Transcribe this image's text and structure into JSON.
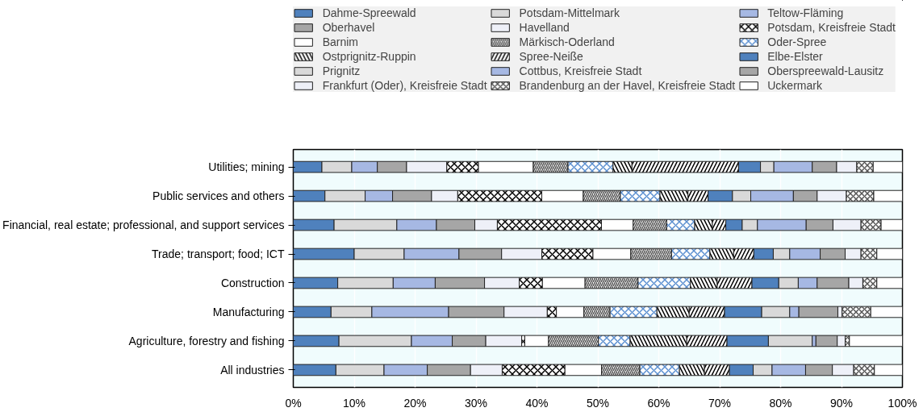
{
  "chart_data": {
    "type": "bar",
    "orientation": "horizontal",
    "stacked": true,
    "categories": [
      "Utilities; mining",
      "Public services and others",
      "Financial, real estate; professional, and support services",
      "Trade; transport; food; ICT",
      "Construction",
      "Manufacturing",
      "Agriculture, forestry and fishing",
      "All industries"
    ],
    "series": [
      {
        "name": "Dahme-Spreewald",
        "color": "#4f81bd",
        "values": [
          4.7,
          5.2,
          6.7,
          10.0,
          7.3,
          6.2,
          7.5,
          7.0
        ]
      },
      {
        "name": "Potsdam-Mittelmark",
        "color": "#d9d9d9",
        "values": [
          4.9,
          6.6,
          10.3,
          8.2,
          9.1,
          6.7,
          11.9,
          7.9
        ]
      },
      {
        "name": "Teltow-Fläming",
        "color": "#a6b8e3",
        "values": [
          4.2,
          4.5,
          6.5,
          9.0,
          6.9,
          12.6,
          6.7,
          7.1
        ]
      },
      {
        "name": "Oberhavel",
        "color": "#a6a6a6",
        "values": [
          4.8,
          6.4,
          6.3,
          7.0,
          8.1,
          9.1,
          5.5,
          7.1
        ]
      },
      {
        "name": "Havelland",
        "color": "#eef0f8",
        "values": [
          6.6,
          4.3,
          3.7,
          6.6,
          5.7,
          7.1,
          5.9,
          5.2
        ]
      },
      {
        "name": "Potsdam, Kreisfreie Stadt",
        "color": "#ffffff",
        "values": [
          5.2,
          13.8,
          17.1,
          8.4,
          3.8,
          1.5,
          0.5,
          10.3
        ]
      },
      {
        "name": "Barnim",
        "color": "#ffffff",
        "values": [
          9.0,
          6.8,
          5.2,
          6.2,
          7.0,
          4.5,
          3.9,
          6.0
        ]
      },
      {
        "name": "Märkisch-Oderland",
        "color": "#ffffff",
        "values": [
          5.7,
          6.1,
          5.5,
          6.7,
          8.7,
          4.3,
          8.2,
          6.3
        ]
      },
      {
        "name": "Oder-Spree",
        "color": "#ffffff",
        "values": [
          7.4,
          6.5,
          4.6,
          6.3,
          8.6,
          7.7,
          5.2,
          6.5
        ]
      },
      {
        "name": "Ostprignitz-Ruppin",
        "color": "#ffffff",
        "values": [
          3.1,
          4.6,
          2.9,
          3.9,
          4.4,
          5.3,
          9.3,
          4.1
        ]
      },
      {
        "name": "Spree-Neiße",
        "color": "#ffffff",
        "values": [
          17.5,
          3.3,
          2.2,
          3.3,
          5.7,
          5.8,
          6.6,
          4.1
        ]
      },
      {
        "name": "Elbe-Elster",
        "color": "#4f81bd",
        "values": [
          3.6,
          4.0,
          2.7,
          3.2,
          4.4,
          6.1,
          6.8,
          3.9
        ]
      },
      {
        "name": "Prignitz",
        "color": "#d9d9d9",
        "values": [
          2.2,
          3.0,
          2.5,
          2.7,
          3.2,
          4.6,
          7.2,
          3.1
        ]
      },
      {
        "name": "Cottbus, Kreisfreie Stadt",
        "color": "#a6b8e3",
        "values": [
          6.3,
          7.0,
          8.0,
          5.0,
          3.1,
          1.5,
          0.6,
          5.5
        ]
      },
      {
        "name": "Oberspreewald-Lausitz",
        "color": "#a6a6a6",
        "values": [
          4.0,
          3.9,
          4.4,
          4.1,
          5.2,
          6.4,
          3.5,
          4.4
        ]
      },
      {
        "name": "Frankfurt (Oder), Kreisfreie Stadt",
        "color": "#eef0f8",
        "values": [
          3.3,
          4.8,
          4.6,
          2.6,
          2.3,
          0.7,
          1.3,
          3.5
        ]
      },
      {
        "name": "Brandenburg an der Havel, Kreisfreie Stadt",
        "color": "#ffffff",
        "values": [
          2.7,
          4.5,
          3.3,
          2.6,
          2.3,
          4.7,
          0.7,
          3.4
        ]
      },
      {
        "name": "Uckermark",
        "color": "#ffffff",
        "values": [
          4.8,
          4.7,
          3.5,
          4.2,
          4.2,
          5.2,
          8.7,
          4.6
        ]
      }
    ],
    "xlim": [
      0,
      100
    ],
    "xticks": [
      {
        "value": 0,
        "label": "0%"
      },
      {
        "value": 10,
        "label": "10%"
      },
      {
        "value": 20,
        "label": "20%"
      },
      {
        "value": 30,
        "label": "30%"
      },
      {
        "value": 40,
        "label": "40%"
      },
      {
        "value": 50,
        "label": "50%"
      },
      {
        "value": 60,
        "label": "60%"
      },
      {
        "value": 70,
        "label": "70%"
      },
      {
        "value": 80,
        "label": "80%"
      },
      {
        "value": 90,
        "label": "90%"
      },
      {
        "value": 100,
        "label": "100%"
      }
    ],
    "grid": "x",
    "legend": "top"
  }
}
